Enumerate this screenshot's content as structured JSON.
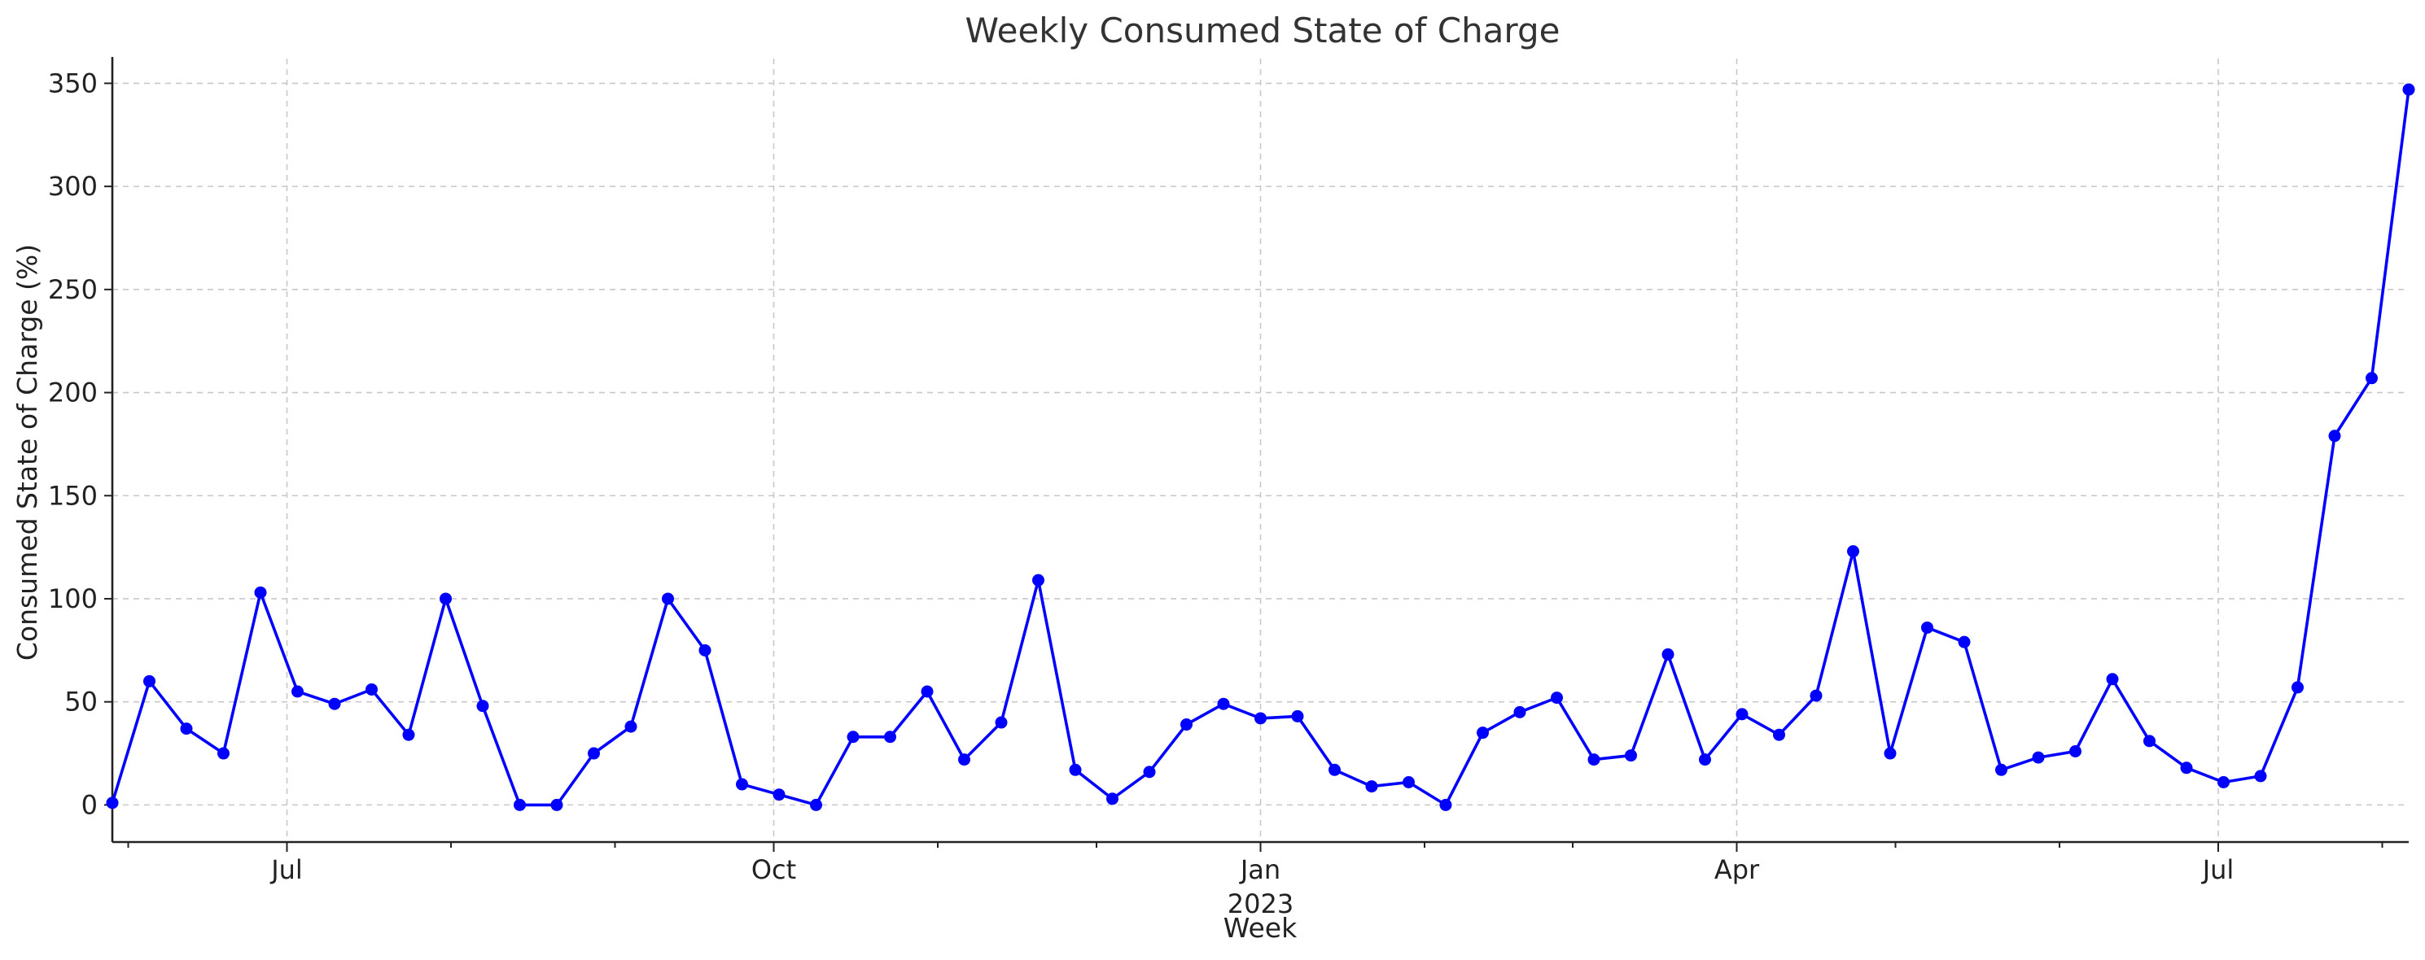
{
  "chart_data": {
    "type": "line",
    "title": "Weekly Consumed State of Charge",
    "xlabel": "Week",
    "ylabel": "Consumed State of Charge (%)",
    "x_axis_type": "date",
    "x_start": "2022-05-29",
    "x_end": "2023-08-06",
    "ylim": [
      -18,
      362
    ],
    "y_ticks": [
      0,
      50,
      100,
      150,
      200,
      250,
      300,
      350
    ],
    "x_major_ticks": [
      {
        "date": "2022-07-01",
        "label": "Jul",
        "sublabel": ""
      },
      {
        "date": "2022-10-01",
        "label": "Oct",
        "sublabel": ""
      },
      {
        "date": "2023-01-01",
        "label": "Jan",
        "sublabel": "2023"
      },
      {
        "date": "2023-04-01",
        "label": "Apr",
        "sublabel": ""
      },
      {
        "date": "2023-07-01",
        "label": "Jul",
        "sublabel": ""
      }
    ],
    "x_minor_ticks": [
      "2022-06-01",
      "2022-08-01",
      "2022-09-01",
      "2022-11-01",
      "2022-12-01",
      "2023-02-01",
      "2023-03-01",
      "2023-05-01",
      "2023-06-01",
      "2023-08-01"
    ],
    "grid": true,
    "color": "#0000ff",
    "series": [
      {
        "name": "",
        "x": [
          "2022-05-29",
          "2022-06-05",
          "2022-06-12",
          "2022-06-19",
          "2022-06-26",
          "2022-07-03",
          "2022-07-10",
          "2022-07-17",
          "2022-07-24",
          "2022-07-31",
          "2022-08-07",
          "2022-08-14",
          "2022-08-21",
          "2022-08-28",
          "2022-09-04",
          "2022-09-11",
          "2022-09-18",
          "2022-09-25",
          "2022-10-02",
          "2022-10-09",
          "2022-10-16",
          "2022-10-23",
          "2022-10-30",
          "2022-11-06",
          "2022-11-13",
          "2022-11-20",
          "2022-11-27",
          "2022-12-04",
          "2022-12-11",
          "2022-12-18",
          "2022-12-25",
          "2023-01-01",
          "2023-01-08",
          "2023-01-15",
          "2023-01-22",
          "2023-01-29",
          "2023-02-05",
          "2023-02-12",
          "2023-02-19",
          "2023-02-26",
          "2023-03-05",
          "2023-03-12",
          "2023-03-19",
          "2023-03-26",
          "2023-04-02",
          "2023-04-09",
          "2023-04-16",
          "2023-04-23",
          "2023-04-30",
          "2023-05-07",
          "2023-05-14",
          "2023-05-21",
          "2023-05-28",
          "2023-06-04",
          "2023-06-11",
          "2023-06-18",
          "2023-06-25",
          "2023-07-02",
          "2023-07-09",
          "2023-07-16",
          "2023-07-23",
          "2023-07-30",
          "2023-08-06"
        ],
        "values": [
          1,
          60,
          37,
          25,
          103,
          55,
          49,
          56,
          34,
          100,
          48,
          0,
          0,
          25,
          38,
          100,
          75,
          10,
          5,
          0,
          33,
          33,
          55,
          22,
          40,
          109,
          17,
          3,
          16,
          39,
          49,
          42,
          43,
          17,
          9,
          11,
          0,
          35,
          45,
          52,
          22,
          24,
          73,
          22,
          44,
          34,
          53,
          123,
          25,
          86,
          79,
          17,
          23,
          26,
          61,
          31,
          18,
          11,
          14,
          57,
          179,
          207,
          347
        ]
      }
    ]
  }
}
